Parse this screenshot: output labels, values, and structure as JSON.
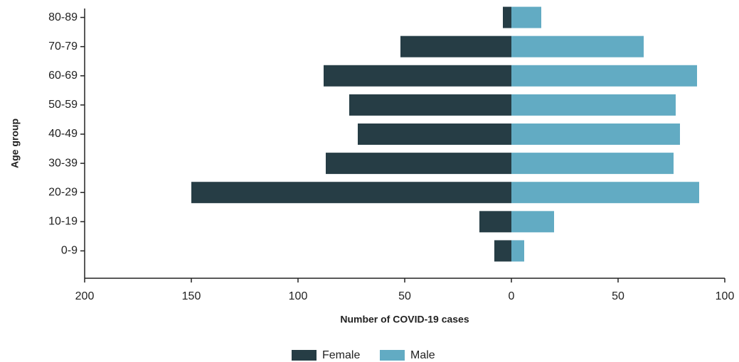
{
  "chart_data": {
    "type": "pyramid",
    "x_label": "Number of COVID-19 cases",
    "y_label": "Age group",
    "categories": [
      "0-9",
      "10-19",
      "20-29",
      "30-39",
      "40-49",
      "50-59",
      "60-69",
      "70-79",
      "80-89"
    ],
    "series": [
      {
        "name": "Female",
        "color": "#263d45",
        "values": [
          -8,
          -15,
          -150,
          -87,
          -72,
          -76,
          -88,
          -52,
          -4
        ]
      },
      {
        "name": "Male",
        "color": "#62abc3",
        "values": [
          6,
          20,
          88,
          76,
          79,
          77,
          87,
          62,
          14
        ]
      }
    ],
    "xlim": [
      -200,
      100
    ],
    "xticks": [
      {
        "value": -200,
        "label": "200"
      },
      {
        "value": -150,
        "label": "150"
      },
      {
        "value": -100,
        "label": "100"
      },
      {
        "value": -50,
        "label": "50"
      },
      0,
      50,
      100
    ]
  }
}
